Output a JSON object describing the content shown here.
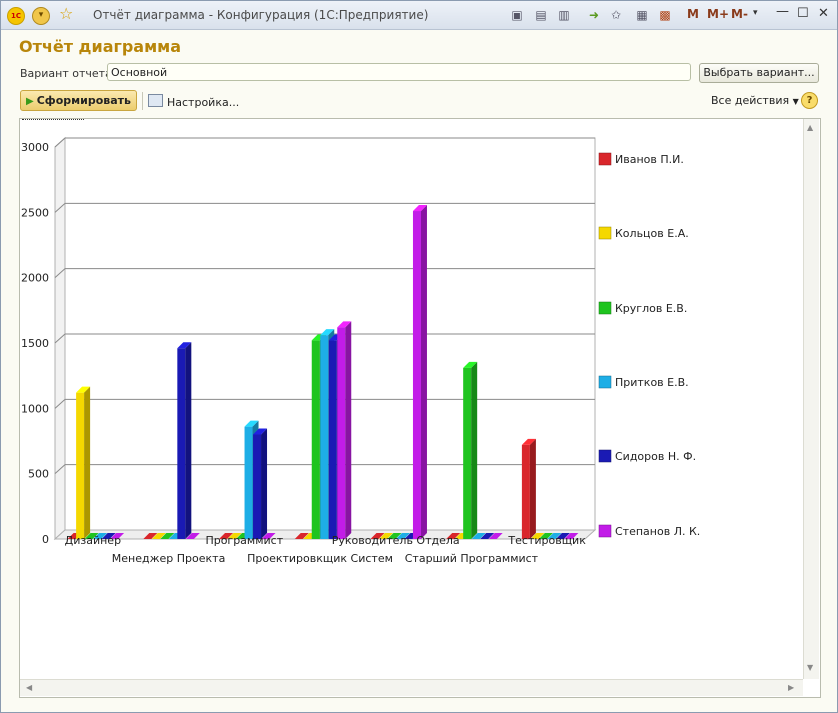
{
  "window": {
    "logo_text": "1С",
    "title": "Отчёт диаграмма - Конфигурация  (1С:Предприятие)",
    "m_buttons": [
      "M",
      "M+",
      "M-"
    ]
  },
  "report": {
    "heading": "Отчёт диаграмма",
    "variant_label": "Вариант отчета:",
    "variant_value": "Основной",
    "choose_variant_button": "Выбрать вариант...",
    "generate_button": "Сформировать",
    "settings_button": "Настройка...",
    "all_actions": "Все действия",
    "help": "?"
  },
  "chart_data": {
    "type": "bar",
    "categories": [
      "Дизайнер",
      "Менеджер Проекта",
      "Программист",
      "Проектировкщик Систем",
      "Руководитель Отдела",
      "Старший Программист",
      "Тестировщик"
    ],
    "ylim": [
      0,
      3000
    ],
    "yticks": [
      "0",
      "500",
      "1000",
      "1500",
      "2000",
      "2500",
      "3000"
    ],
    "series": [
      {
        "name": "Иванов П.И.",
        "color": "#d9262b",
        "values": [
          0,
          0,
          0,
          0,
          0,
          0,
          720
        ]
      },
      {
        "name": "Кольцов Е.А.",
        "color": "#f5d800",
        "values": [
          1120,
          0,
          0,
          0,
          0,
          0,
          0
        ]
      },
      {
        "name": "Круглов Е.В.",
        "color": "#1fc41f",
        "values": [
          0,
          0,
          0,
          1520,
          0,
          1310,
          0
        ]
      },
      {
        "name": "Притков Е.В.",
        "color": "#1eaee6",
        "values": [
          0,
          0,
          860,
          1560,
          0,
          0,
          0
        ]
      },
      {
        "name": "Сидоров Н. Ф.",
        "color": "#1a1ab4",
        "values": [
          0,
          1460,
          800,
          1520,
          0,
          0,
          0
        ]
      },
      {
        "name": "Степанов Л. К.",
        "color": "#c21ce8",
        "values": [
          0,
          0,
          0,
          1620,
          2510,
          0,
          0
        ]
      }
    ],
    "legend_position": "right",
    "grid": true
  }
}
